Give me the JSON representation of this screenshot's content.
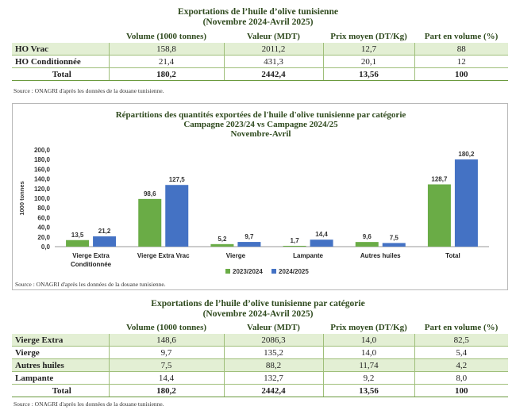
{
  "table1": {
    "title_line1": "Exportations de l’huile d’olive tunisienne",
    "title_line2": "(Novembre 2024-Avril 2025)",
    "headers": [
      "",
      "Volume (1000 tonnes)",
      "Valeur (MDT)",
      "Prix moyen (DT/Kg)",
      "Part en volume (%)"
    ],
    "rows": [
      [
        "HO Vrac",
        "158,8",
        "2011,2",
        "12,7",
        "88"
      ],
      [
        "HO Conditionnée",
        "21,4",
        "431,3",
        "20,1",
        "12"
      ]
    ],
    "total": [
      "Total",
      "180,2",
      "2442,4",
      "13,56",
      "100"
    ],
    "source": "Source : ONAGRI d'après les données de la douane tunisienne."
  },
  "chart": {
    "title_line1": "Répartitions des quantités exportées de l'huile d'olive tunisienne par catégorie",
    "title_line2": "Campagne 2023/24 vs Campagne 2024/25",
    "title_line3": "Novembre-Avril",
    "source": "Source : ONAGRI d'après les données de la douane tunisienne."
  },
  "chart_data": {
    "type": "bar",
    "title": "Répartitions des quantités exportées de l'huile d'olive tunisienne par catégorie",
    "subtitle": "Campagne 2023/24 vs Campagne 2024/25 — Novembre-Avril",
    "ylabel": "1000 tonnes",
    "xlabel": "",
    "ylim": [
      0,
      200
    ],
    "yticks": [
      "0,0",
      "20,0",
      "40,0",
      "60,0",
      "80,0",
      "100,0",
      "120,0",
      "140,0",
      "160,0",
      "180,0",
      "200,0"
    ],
    "categories": [
      [
        "Vierge Extra",
        "Conditionnée"
      ],
      [
        "Vierge Extra Vrac"
      ],
      [
        "Vierge"
      ],
      [
        "Lampante"
      ],
      [
        "Autres huiles"
      ],
      [
        "Total"
      ]
    ],
    "series": [
      {
        "name": "2023/2024",
        "color": "#6aac46",
        "values": [
          13.5,
          98.6,
          5.2,
          1.7,
          9.6,
          128.7
        ],
        "labels": [
          "13,5",
          "98,6",
          "5,2",
          "1,7",
          "9,6",
          "128,7"
        ]
      },
      {
        "name": "2024/2025",
        "color": "#4472c4",
        "values": [
          21.2,
          127.5,
          9.7,
          14.4,
          7.5,
          180.2
        ],
        "labels": [
          "21,2",
          "127,5",
          "9,7",
          "14,4",
          "7,5",
          "180,2"
        ]
      }
    ],
    "grid": false,
    "legend": "bottom"
  },
  "table2": {
    "title_line1": "Exportations de l’huile d’olive tunisienne par catégorie",
    "title_line2": "(Novembre 2024-Avril 2025)",
    "headers": [
      "",
      "Volume (1000 tonnes)",
      "Valeur (MDT)",
      "Prix moyen (DT/Kg)",
      "Part en volume (%)"
    ],
    "rows": [
      [
        "Vierge Extra",
        "148,6",
        "2086,3",
        "14,0",
        "82,5"
      ],
      [
        "Vierge",
        "9,7",
        "135,2",
        "14,0",
        "5,4"
      ],
      [
        "Autres huiles",
        "7,5",
        "88,2",
        "11,74",
        "4,2"
      ],
      [
        "Lampante",
        "14,4",
        "132,7",
        "9,2",
        "8,0"
      ]
    ],
    "total": [
      "Total",
      "180,2",
      "2442,4",
      "13,56",
      "100"
    ],
    "source": "Source : ONAGRI d'après les données de la douane tunisienne."
  }
}
